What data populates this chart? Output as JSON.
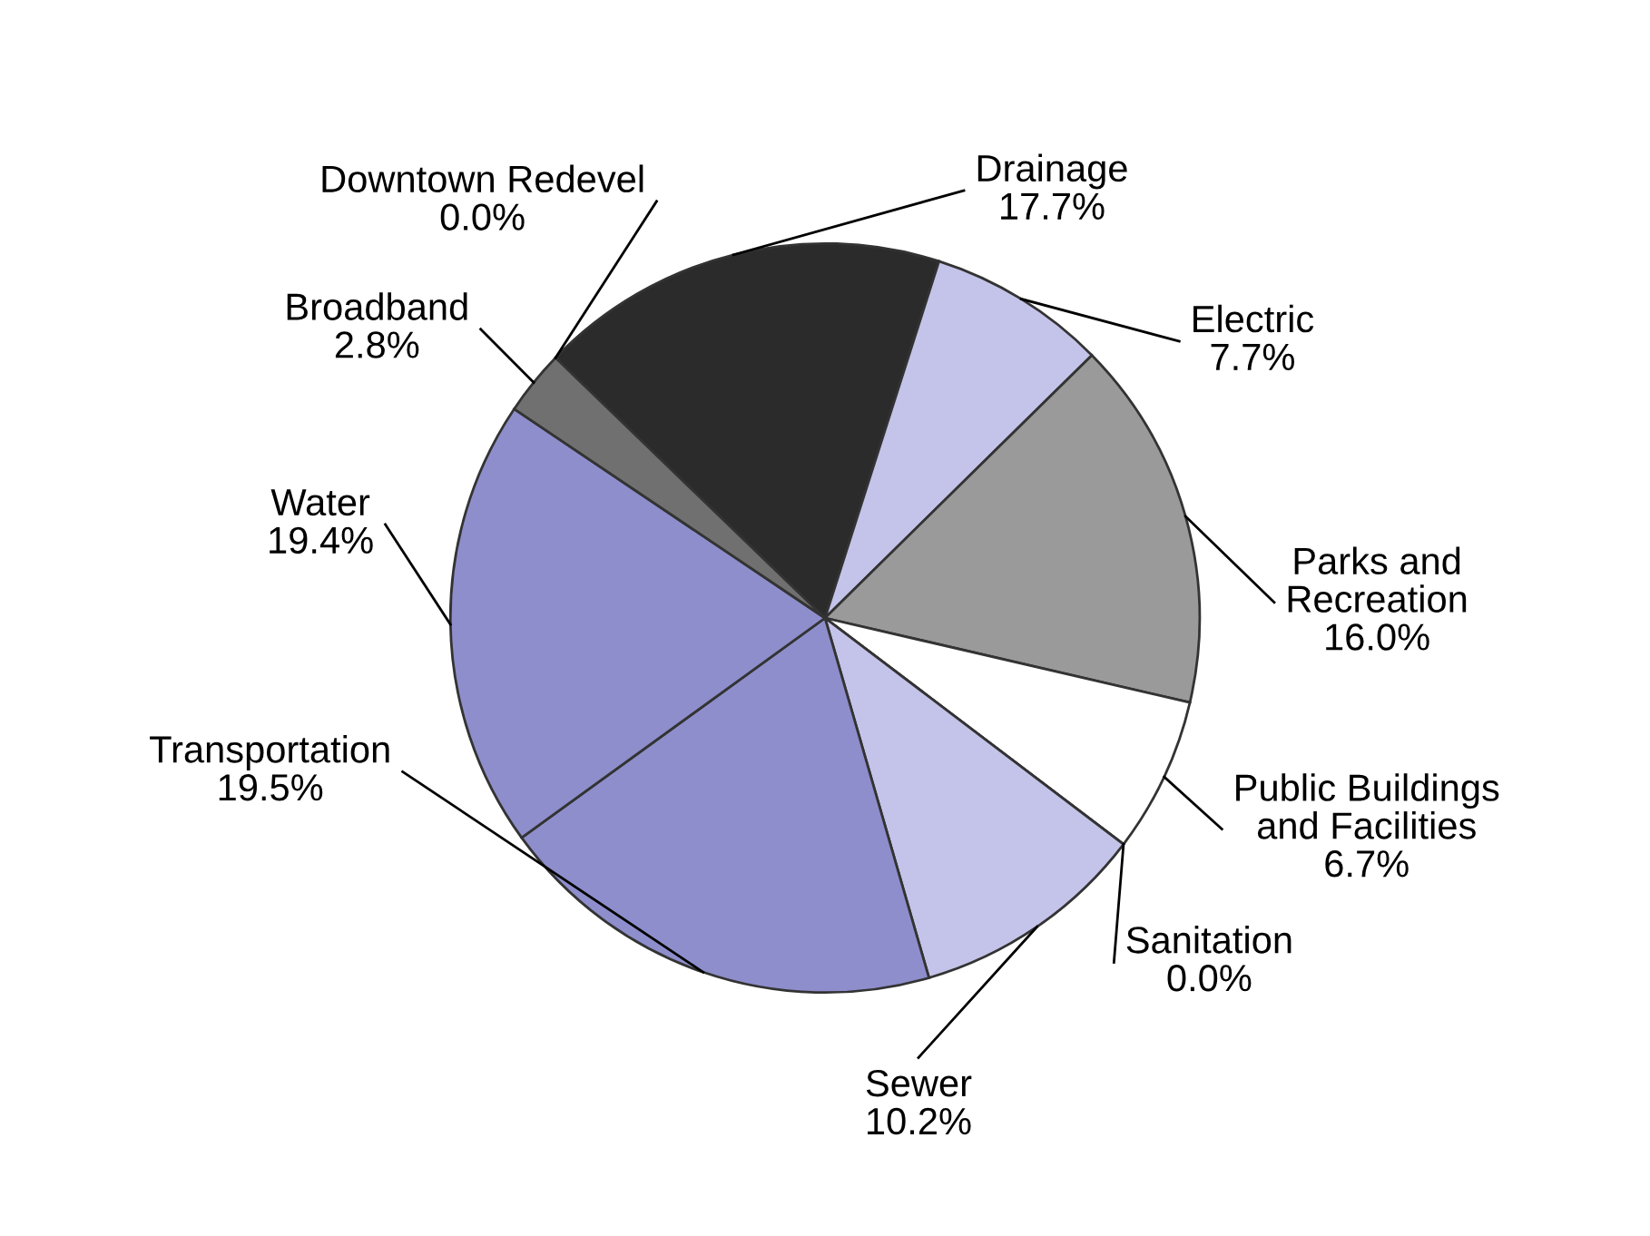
{
  "chart_data": {
    "type": "pie",
    "categories": [
      "Downtown Redevel",
      "Drainage",
      "Electric",
      "Parks and Recreation",
      "Public Buildings and Facilities",
      "Sanitation",
      "Sewer",
      "Transportation",
      "Water",
      "Broadband"
    ],
    "values": [
      0.0,
      17.7,
      7.7,
      16.0,
      6.7,
      0.0,
      10.2,
      19.5,
      19.4,
      2.8
    ],
    "value_labels": [
      "0.0%",
      "17.7%",
      "7.7%",
      "16.0%",
      "6.7%",
      "0.0%",
      "10.2%",
      "19.5%",
      "19.4%",
      "2.8%"
    ],
    "colors": [
      "#b0b0b0",
      "#2b2b2b",
      "#c4c4ea",
      "#9a9a9a",
      "#ffffff",
      "#d0d0d0",
      "#c4c4ea",
      "#8e8ecc",
      "#8e8ecc",
      "#707070"
    ]
  }
}
